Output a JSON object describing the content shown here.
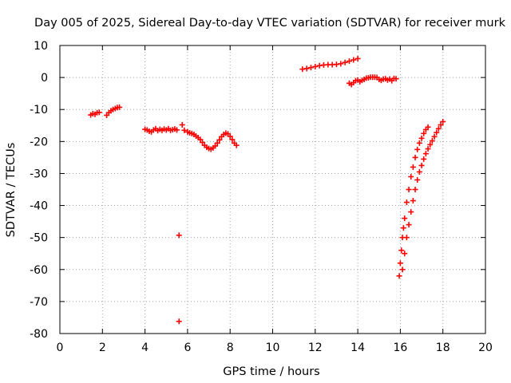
{
  "chart_data": {
    "type": "scatter",
    "title": "Day 005 of 2025, Sidereal Day-to-day VTEC variation (SDTVAR) for receiver murk",
    "xlabel": "GPS time / hours",
    "ylabel": "SDTVAR / TECUs",
    "xlim": [
      0,
      20
    ],
    "ylim": [
      -80,
      10
    ],
    "xticks": [
      0,
      2,
      4,
      6,
      8,
      10,
      12,
      14,
      16,
      18,
      20
    ],
    "yticks": [
      10,
      0,
      -10,
      -20,
      -30,
      -40,
      -50,
      -60,
      -70,
      -80
    ],
    "grid": true,
    "marker": "+",
    "marker_color": "#ff0000",
    "series": [
      {
        "name": "SDTVAR",
        "points": [
          [
            1.45,
            -11.7
          ],
          [
            1.55,
            -11.3
          ],
          [
            1.65,
            -11.5
          ],
          [
            1.75,
            -11.0
          ],
          [
            1.85,
            -10.9
          ],
          [
            2.2,
            -11.8
          ],
          [
            2.3,
            -11.0
          ],
          [
            2.4,
            -10.4
          ],
          [
            2.5,
            -10.0
          ],
          [
            2.6,
            -9.7
          ],
          [
            2.7,
            -9.4
          ],
          [
            2.8,
            -9.3
          ],
          [
            4.0,
            -16.2
          ],
          [
            4.1,
            -16.4
          ],
          [
            4.2,
            -16.8
          ],
          [
            4.3,
            -17.0
          ],
          [
            4.4,
            -16.4
          ],
          [
            4.5,
            -16.0
          ],
          [
            4.6,
            -16.6
          ],
          [
            4.7,
            -16.2
          ],
          [
            4.8,
            -16.5
          ],
          [
            4.9,
            -16.1
          ],
          [
            5.0,
            -16.4
          ],
          [
            5.1,
            -16.0
          ],
          [
            5.2,
            -16.5
          ],
          [
            5.3,
            -16.3
          ],
          [
            5.4,
            -16.1
          ],
          [
            5.5,
            -16.4
          ],
          [
            5.6,
            -49.3
          ],
          [
            5.6,
            -76.2
          ],
          [
            5.75,
            -14.8
          ],
          [
            5.85,
            -16.5
          ],
          [
            6.0,
            -17.0
          ],
          [
            6.1,
            -17.3
          ],
          [
            6.2,
            -17.5
          ],
          [
            6.3,
            -17.8
          ],
          [
            6.4,
            -18.3
          ],
          [
            6.5,
            -18.8
          ],
          [
            6.6,
            -19.4
          ],
          [
            6.7,
            -20.3
          ],
          [
            6.8,
            -21.2
          ],
          [
            6.9,
            -21.8
          ],
          [
            7.0,
            -22.2
          ],
          [
            7.1,
            -22.4
          ],
          [
            7.2,
            -22.0
          ],
          [
            7.3,
            -21.4
          ],
          [
            7.4,
            -20.5
          ],
          [
            7.5,
            -19.5
          ],
          [
            7.6,
            -18.5
          ],
          [
            7.7,
            -17.8
          ],
          [
            7.8,
            -17.4
          ],
          [
            7.9,
            -17.6
          ],
          [
            8.0,
            -18.4
          ],
          [
            8.1,
            -19.4
          ],
          [
            8.2,
            -20.5
          ],
          [
            8.3,
            -21.2
          ],
          [
            11.4,
            2.6
          ],
          [
            11.6,
            2.8
          ],
          [
            11.8,
            3.1
          ],
          [
            12.0,
            3.4
          ],
          [
            12.2,
            3.7
          ],
          [
            12.4,
            3.9
          ],
          [
            12.6,
            4.0
          ],
          [
            12.8,
            4.0
          ],
          [
            13.0,
            4.1
          ],
          [
            13.2,
            4.3
          ],
          [
            13.4,
            4.7
          ],
          [
            13.6,
            5.1
          ],
          [
            13.8,
            5.5
          ],
          [
            14.0,
            5.9
          ],
          [
            13.6,
            -1.8
          ],
          [
            13.7,
            -2.2
          ],
          [
            13.8,
            -1.6
          ],
          [
            13.9,
            -1.0
          ],
          [
            14.0,
            -0.8
          ],
          [
            14.1,
            -1.3
          ],
          [
            14.2,
            -0.9
          ],
          [
            14.3,
            -0.6
          ],
          [
            14.4,
            -0.2
          ],
          [
            14.5,
            -0.1
          ],
          [
            14.6,
            0.1
          ],
          [
            14.7,
            0.1
          ],
          [
            14.8,
            0.1
          ],
          [
            14.9,
            0.0
          ],
          [
            15.0,
            -0.6
          ],
          [
            15.1,
            -0.9
          ],
          [
            15.2,
            -0.5
          ],
          [
            15.3,
            -0.4
          ],
          [
            15.4,
            -0.8
          ],
          [
            15.5,
            -0.5
          ],
          [
            15.6,
            -1.0
          ],
          [
            15.7,
            -0.3
          ],
          [
            15.8,
            -0.4
          ],
          [
            15.95,
            -62.0
          ],
          [
            16.0,
            -58.0
          ],
          [
            16.05,
            -54.0
          ],
          [
            16.1,
            -50.0
          ],
          [
            16.15,
            -47.0
          ],
          [
            16.2,
            -44.0
          ],
          [
            16.3,
            -39.0
          ],
          [
            16.4,
            -35.0
          ],
          [
            16.5,
            -31.0
          ],
          [
            16.6,
            -28.0
          ],
          [
            16.7,
            -25.0
          ],
          [
            16.8,
            -22.5
          ],
          [
            16.9,
            -20.5
          ],
          [
            17.0,
            -19.0
          ],
          [
            17.1,
            -17.5
          ],
          [
            17.2,
            -16.3
          ],
          [
            17.3,
            -15.5
          ],
          [
            16.1,
            -60.0
          ],
          [
            16.2,
            -55.0
          ],
          [
            16.3,
            -50.0
          ],
          [
            16.4,
            -46.0
          ],
          [
            16.5,
            -42.0
          ],
          [
            16.6,
            -38.5
          ],
          [
            16.7,
            -35.0
          ],
          [
            16.8,
            -32.0
          ],
          [
            16.9,
            -29.5
          ],
          [
            17.0,
            -27.5
          ],
          [
            17.1,
            -25.5
          ],
          [
            17.2,
            -23.8
          ],
          [
            17.3,
            -22.3
          ],
          [
            17.4,
            -21.0
          ],
          [
            17.5,
            -19.8
          ],
          [
            17.6,
            -18.5
          ],
          [
            17.7,
            -17.2
          ],
          [
            17.8,
            -16.0
          ],
          [
            17.9,
            -14.8
          ],
          [
            18.0,
            -13.8
          ]
        ]
      }
    ]
  }
}
